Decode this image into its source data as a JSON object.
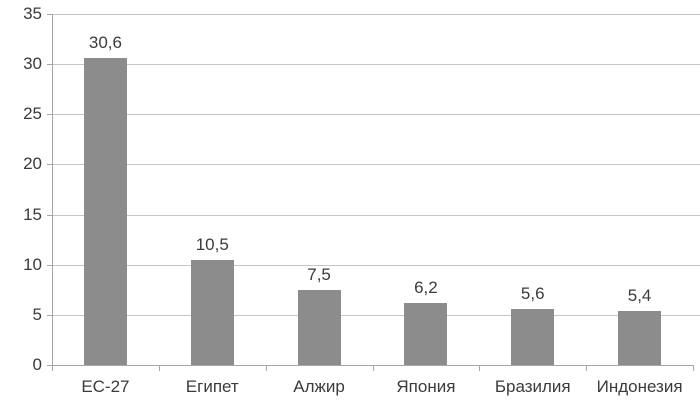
{
  "chart_data": {
    "type": "bar",
    "categories": [
      "ЕС-27",
      "Египет",
      "Алжир",
      "Япония",
      "Бразилия",
      "Индонезия"
    ],
    "values": [
      30.6,
      10.5,
      7.5,
      6.2,
      5.6,
      5.4
    ],
    "value_labels": [
      "30,6",
      "10,5",
      "7,5",
      "6,2",
      "5,6",
      "5,4"
    ],
    "title": "",
    "xlabel": "",
    "ylabel": "",
    "ylim": [
      0,
      35
    ],
    "yticks": [
      0,
      5,
      10,
      15,
      20,
      25,
      30,
      35
    ],
    "grid": true,
    "legend": false,
    "colors": {
      "bar": "#8c8c8c",
      "gridline": "#c6c6c6",
      "axis": "#a6a6a6",
      "text": "#3b3b3b"
    }
  }
}
